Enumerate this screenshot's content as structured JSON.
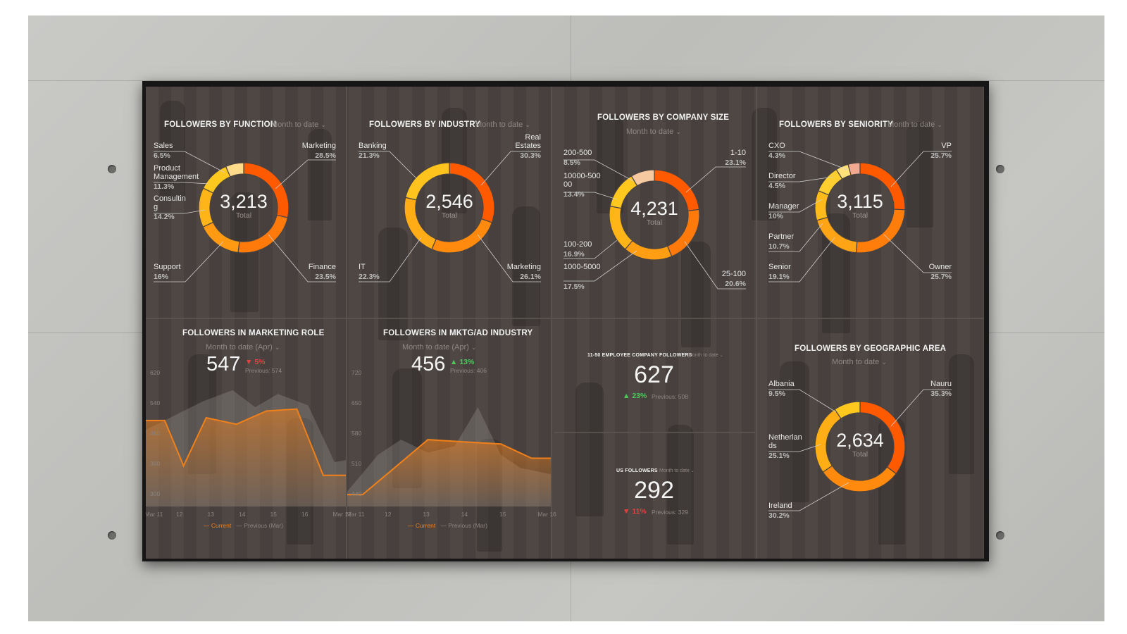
{
  "colors": {
    "accent": "#f0801a",
    "seg_red": "#ff5a00",
    "seg_orange": "#ff7a0a",
    "seg_orange2": "#ff9a12",
    "seg_amber": "#ffb418",
    "seg_yellow": "#ffc81f",
    "seg_light": "#ffdf6a",
    "seg_peach": "#f7c9a0",
    "up": "#4ec95a",
    "down": "#e0433f"
  },
  "donuts": [
    {
      "id": "function",
      "title": "FOLLOWERS BY FUNCTION",
      "period": "Month to date",
      "value": "3,213",
      "total_label": "Total",
      "segments": [
        {
          "name": "Marketing",
          "pct": 28.5,
          "pct_label": "28.5%",
          "color": "#ff5a00"
        },
        {
          "name": "Finance",
          "pct": 23.5,
          "pct_label": "23.5%",
          "color": "#ff7a0a"
        },
        {
          "name": "Support",
          "pct": 16,
          "pct_label": "16%",
          "color": "#ff9a12"
        },
        {
          "name": "Consulting",
          "label_lines": [
            "Consultin",
            "g"
          ],
          "pct": 14.2,
          "pct_label": "14.2%",
          "color": "#ffb418"
        },
        {
          "name": "Product Management",
          "label_lines": [
            "Product",
            "Management"
          ],
          "pct": 11.3,
          "pct_label": "11.3%",
          "color": "#ffc81f"
        },
        {
          "name": "Sales",
          "pct": 6.5,
          "pct_label": "6.5%",
          "color": "#ffdb8a"
        }
      ]
    },
    {
      "id": "industry",
      "title": "FOLLOWERS BY INDUSTRY",
      "period": "Month to date",
      "value": "2,546",
      "total_label": "Total",
      "segments": [
        {
          "name": "Real Estates",
          "label_lines": [
            "Real",
            "Estates"
          ],
          "pct": 30.3,
          "pct_label": "30.3%",
          "color": "#ff5a00"
        },
        {
          "name": "Marketing",
          "pct": 26.1,
          "pct_label": "26.1%",
          "color": "#ff8a0d"
        },
        {
          "name": "IT",
          "pct": 22.3,
          "pct_label": "22.3%",
          "color": "#ffac16"
        },
        {
          "name": "Banking",
          "pct": 21.3,
          "pct_label": "21.3%",
          "color": "#ffc31d"
        }
      ]
    },
    {
      "id": "company_size",
      "title": "FOLLOWERS BY COMPANY SIZE",
      "period": "Month to date",
      "value": "4,231",
      "total_label": "Total",
      "segments": [
        {
          "name": "1-10",
          "pct": 23.1,
          "pct_label": "23.1%",
          "color": "#ff5a00"
        },
        {
          "name": "25-100",
          "pct": 20.6,
          "pct_label": "20.6%",
          "color": "#ff7a0a"
        },
        {
          "name": "1000-5000",
          "pct": 17.5,
          "pct_label": "17.5%",
          "color": "#ff9e12"
        },
        {
          "name": "100-200",
          "pct": 16.9,
          "pct_label": "16.9%",
          "color": "#ffb418"
        },
        {
          "name": "10000-50000",
          "label_lines": [
            "10000-500",
            "00"
          ],
          "pct": 13.4,
          "pct_label": "13.4%",
          "color": "#ffc81f"
        },
        {
          "name": "200-500",
          "pct": 8.5,
          "pct_label": "8.5%",
          "color": "#f7c9a0"
        }
      ]
    },
    {
      "id": "seniority",
      "title": "FOLLOWERS BY SENIORITY",
      "period": "Month to date",
      "value": "3,115",
      "total_label": "Total",
      "segments": [
        {
          "name": "VP",
          "pct": 25.7,
          "pct_label": "25.7%",
          "color": "#ff5a00"
        },
        {
          "name": "Owner",
          "pct": 25.7,
          "pct_label": "25.7%",
          "color": "#ff7d0a"
        },
        {
          "name": "Senior",
          "pct": 19.1,
          "pct_label": "19.1%",
          "color": "#ffa414"
        },
        {
          "name": "Partner",
          "pct": 10.7,
          "pct_label": "10.7%",
          "color": "#ffbb1a"
        },
        {
          "name": "Manager",
          "pct": 10,
          "pct_label": "10%",
          "color": "#ffcf30"
        },
        {
          "name": "Director",
          "pct": 4.5,
          "pct_label": "4.5%",
          "color": "#ffe07a"
        },
        {
          "name": "CXO",
          "pct": 4.3,
          "pct_label": "4.3%",
          "color": "#f3a890"
        }
      ]
    },
    {
      "id": "geo",
      "title": "FOLLOWERS BY GEOGRAPHIC AREA",
      "period": "Month to date",
      "value": "2,634",
      "total_label": "Total",
      "segments": [
        {
          "name": "Nauru",
          "pct": 35.3,
          "pct_label": "35.3%",
          "color": "#ff5a00"
        },
        {
          "name": "Ireland",
          "pct": 30.2,
          "pct_label": "30.2%",
          "color": "#ff8a0d"
        },
        {
          "name": "Netherlands",
          "label_lines": [
            "Netherlan",
            "ds"
          ],
          "pct": 25.1,
          "pct_label": "25.1%",
          "color": "#ffae16"
        },
        {
          "name": "Albania",
          "pct": 9.5,
          "pct_label": "9.5%",
          "color": "#ffc81f"
        }
      ]
    }
  ],
  "line_charts": [
    {
      "id": "marketing_role",
      "title": "FOLLOWERS IN MARKETING ROLE",
      "period": "Month to date (Apr)",
      "value": "547",
      "change": "5%",
      "direction": "down",
      "previous_label": "Previous: 574",
      "y_ticks": [
        "620",
        "540",
        "460",
        "380",
        "300"
      ],
      "ylim": [
        300,
        620
      ],
      "x_ticks": [
        "Mar 11",
        "12",
        "13",
        "14",
        "15",
        "16",
        "Mar 17"
      ],
      "current": [
        [
          0,
          505
        ],
        [
          0.5,
          505
        ],
        [
          1,
          385
        ],
        [
          1.6,
          512
        ],
        [
          2.4,
          495
        ],
        [
          3.2,
          530
        ],
        [
          4.0,
          535
        ],
        [
          4.7,
          360
        ],
        [
          5.3,
          360
        ]
      ],
      "previous": [
        [
          0,
          480
        ],
        [
          0.8,
          520
        ],
        [
          1.5,
          555
        ],
        [
          2.3,
          585
        ],
        [
          2.9,
          540
        ],
        [
          3.5,
          575
        ],
        [
          4.3,
          545
        ],
        [
          5.0,
          395
        ],
        [
          5.3,
          400
        ]
      ],
      "legend_current": "Current",
      "legend_previous": "Previous (Mar)"
    },
    {
      "id": "mktg_industry",
      "title": "FOLLOWERS IN MKTG/AD INDUSTRY",
      "period": "Month to date (Apr)",
      "value": "456",
      "change": "13%",
      "direction": "up",
      "previous_label": "Previous: 406",
      "y_ticks": [
        "720",
        "650",
        "580",
        "510",
        "440"
      ],
      "ylim": [
        440,
        720
      ],
      "x_ticks": [
        "Mar 11",
        "12",
        "13",
        "14",
        "15",
        "Mar 16"
      ],
      "current": [
        [
          0,
          448
        ],
        [
          0.4,
          448
        ],
        [
          1.3,
          515
        ],
        [
          2.1,
          575
        ],
        [
          3.0,
          570
        ],
        [
          4.0,
          565
        ],
        [
          4.8,
          532
        ],
        [
          5.3,
          532
        ]
      ],
      "previous": [
        [
          0,
          455
        ],
        [
          0.8,
          540
        ],
        [
          1.4,
          575
        ],
        [
          2.1,
          545
        ],
        [
          2.8,
          560
        ],
        [
          3.4,
          650
        ],
        [
          4.0,
          540
        ],
        [
          4.5,
          510
        ],
        [
          5.3,
          495
        ]
      ],
      "legend_current": "Current",
      "legend_previous": "Previous (Mar)"
    }
  ],
  "numbers": [
    {
      "id": "small_company",
      "title": "11-50 EMPLOYEE COMPANY FOLLOWERS",
      "period": "Month to date",
      "value": "627",
      "change": "23%",
      "direction": "up",
      "previous_label": "Previous: 508"
    },
    {
      "id": "us",
      "title": "US FOLLOWERS",
      "period": "Month to date",
      "value": "292",
      "change": "11%",
      "direction": "down",
      "previous_label": "Previous: 329"
    }
  ]
}
